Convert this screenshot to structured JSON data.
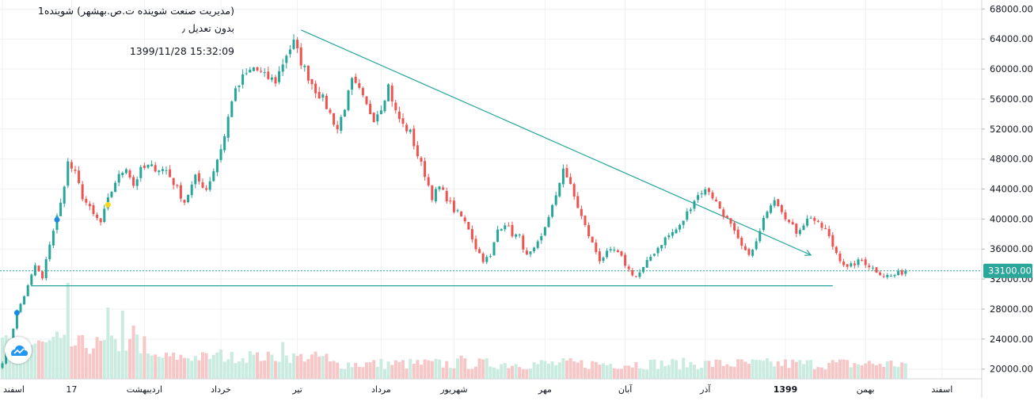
{
  "header": {
    "title": "(مدیریت صنعت شوینده ت.ص.بهشهر) شوینده1",
    "subtitle": "بدون تعدیل ٫",
    "datetime": "1399/11/28   15:32:09"
  },
  "colors": {
    "up": "#26a69a",
    "down": "#ef5350",
    "up_volume": "#c9ebe0",
    "down_volume": "#f7c6c6",
    "trendline": "#26a69a",
    "price_label_bg": "#2aa69a",
    "grid": "#eef0f3",
    "axis_text": "#131722"
  },
  "chart_data": {
    "type": "candlestick",
    "title": "",
    "xlabel": "",
    "ylabel": "",
    "ylim": [
      18700,
      69200
    ],
    "y_ticks": [
      20000,
      24000,
      28000,
      32000,
      36000,
      40000,
      44000,
      48000,
      52000,
      56000,
      60000,
      64000,
      68000
    ],
    "y_tick_labels": [
      "20000.00",
      "24000.00",
      "28000.00",
      "32000.00",
      "36000.00",
      "40000.00",
      "44000.00",
      "48000.00",
      "52000.00",
      "56000.00",
      "60000.00",
      "64000.00",
      "68000.00"
    ],
    "x_labels": [
      {
        "label": "اسفند",
        "index": 0
      },
      {
        "label": "17",
        "index": 19
      },
      {
        "label": "اردیبهشت",
        "index": 39
      },
      {
        "label": "خرداد",
        "index": 60
      },
      {
        "label": "تیر",
        "index": 81
      },
      {
        "label": "مرداد",
        "index": 104
      },
      {
        "label": "شهریور",
        "index": 124
      },
      {
        "label": "مهر",
        "index": 149
      },
      {
        "label": "آبان",
        "index": 171
      },
      {
        "label": "آذر",
        "index": 193
      },
      {
        "label": "1399",
        "index": 215
      },
      {
        "label": "بهمن",
        "index": 237
      },
      {
        "label": "اسفند",
        "index": 258
      }
    ],
    "last_price": 33100,
    "last_price_label": "33100.00",
    "keypoints": [
      [
        0,
        21000
      ],
      [
        2,
        23600
      ],
      [
        4,
        27500
      ],
      [
        7,
        31000
      ],
      [
        9,
        33800
      ],
      [
        11,
        32000
      ],
      [
        13,
        36800
      ],
      [
        16,
        42000
      ],
      [
        18,
        47500
      ],
      [
        20,
        46000
      ],
      [
        22,
        43000
      ],
      [
        25,
        40500
      ],
      [
        27,
        39500
      ],
      [
        29,
        42500
      ],
      [
        31,
        45000
      ],
      [
        34,
        47000
      ],
      [
        36,
        44500
      ],
      [
        38,
        46500
      ],
      [
        40,
        47000
      ],
      [
        42,
        46800
      ],
      [
        45,
        46500
      ],
      [
        48,
        44000
      ],
      [
        50,
        42300
      ],
      [
        53,
        45500
      ],
      [
        56,
        44000
      ],
      [
        58,
        46500
      ],
      [
        61,
        51000
      ],
      [
        63,
        56000
      ],
      [
        66,
        58800
      ],
      [
        69,
        60200
      ],
      [
        72,
        59000
      ],
      [
        75,
        58400
      ],
      [
        78,
        62000
      ],
      [
        80,
        63500
      ],
      [
        82,
        61000
      ],
      [
        84,
        59000
      ],
      [
        86,
        57200
      ],
      [
        88,
        56000
      ],
      [
        90,
        54000
      ],
      [
        92,
        52000
      ],
      [
        94,
        55000
      ],
      [
        96,
        58300
      ],
      [
        98,
        57000
      ],
      [
        100,
        55000
      ],
      [
        102,
        53500
      ],
      [
        104,
        55000
      ],
      [
        106,
        57800
      ],
      [
        108,
        54200
      ],
      [
        110,
        52500
      ],
      [
        112,
        51500
      ],
      [
        114,
        48500
      ],
      [
        116,
        46000
      ],
      [
        118,
        43000
      ],
      [
        120,
        44200
      ],
      [
        122,
        42800
      ],
      [
        124,
        41200
      ],
      [
        126,
        40300
      ],
      [
        128,
        38800
      ],
      [
        130,
        36200
      ],
      [
        132,
        34600
      ],
      [
        134,
        34900
      ],
      [
        136,
        38600
      ],
      [
        138,
        39500
      ],
      [
        140,
        38000
      ],
      [
        142,
        37600
      ],
      [
        144,
        35000
      ],
      [
        146,
        35800
      ],
      [
        148,
        37500
      ],
      [
        150,
        40500
      ],
      [
        152,
        42800
      ],
      [
        154,
        47000
      ],
      [
        156,
        44300
      ],
      [
        158,
        41600
      ],
      [
        160,
        39000
      ],
      [
        162,
        36700
      ],
      [
        164,
        34600
      ],
      [
        166,
        35400
      ],
      [
        168,
        35800
      ],
      [
        170,
        34800
      ],
      [
        172,
        33200
      ],
      [
        174,
        32300
      ],
      [
        176,
        33400
      ],
      [
        178,
        35000
      ],
      [
        180,
        36200
      ],
      [
        182,
        37400
      ],
      [
        184,
        38200
      ],
      [
        186,
        39000
      ],
      [
        188,
        40800
      ],
      [
        190,
        42600
      ],
      [
        192,
        43700
      ],
      [
        194,
        43800
      ],
      [
        196,
        42200
      ],
      [
        198,
        40700
      ],
      [
        200,
        39100
      ],
      [
        202,
        37100
      ],
      [
        204,
        35500
      ],
      [
        206,
        35700
      ],
      [
        208,
        38200
      ],
      [
        210,
        41400
      ],
      [
        212,
        42900
      ],
      [
        214,
        41300
      ],
      [
        216,
        39500
      ],
      [
        218,
        38300
      ],
      [
        220,
        39400
      ],
      [
        222,
        40400
      ],
      [
        224,
        39200
      ],
      [
        226,
        38600
      ],
      [
        228,
        36400
      ],
      [
        230,
        34700
      ],
      [
        232,
        33400
      ],
      [
        234,
        34100
      ],
      [
        236,
        34500
      ],
      [
        238,
        33800
      ],
      [
        240,
        33100
      ],
      [
        242,
        32500
      ],
      [
        244,
        32400
      ],
      [
        246,
        32700
      ],
      [
        248,
        33100
      ]
    ],
    "volume_peak_index": 18,
    "volume_peaks": [
      [
        18,
        31500
      ],
      [
        29,
        28200
      ],
      [
        33,
        27800
      ],
      [
        36,
        25800
      ],
      [
        37,
        24600
      ],
      [
        15,
        25000
      ],
      [
        77,
        23600
      ],
      [
        60,
        22600
      ],
      [
        68,
        22400
      ],
      [
        126,
        21800
      ]
    ],
    "trendlines": [
      {
        "name": "resistance",
        "from": [
          82,
          65200
        ],
        "to": [
          222,
          35200
        ]
      },
      {
        "name": "support",
        "from": [
          8,
          31100
        ],
        "to": [
          228,
          31100
        ]
      }
    ],
    "markers": [
      {
        "index": 4,
        "price": 27500,
        "color": "#1e88e5"
      },
      {
        "index": 15,
        "price": 39900,
        "color": "#1e88e5"
      },
      {
        "index": 29,
        "price": 41900,
        "color": "#f9d71c"
      }
    ]
  }
}
